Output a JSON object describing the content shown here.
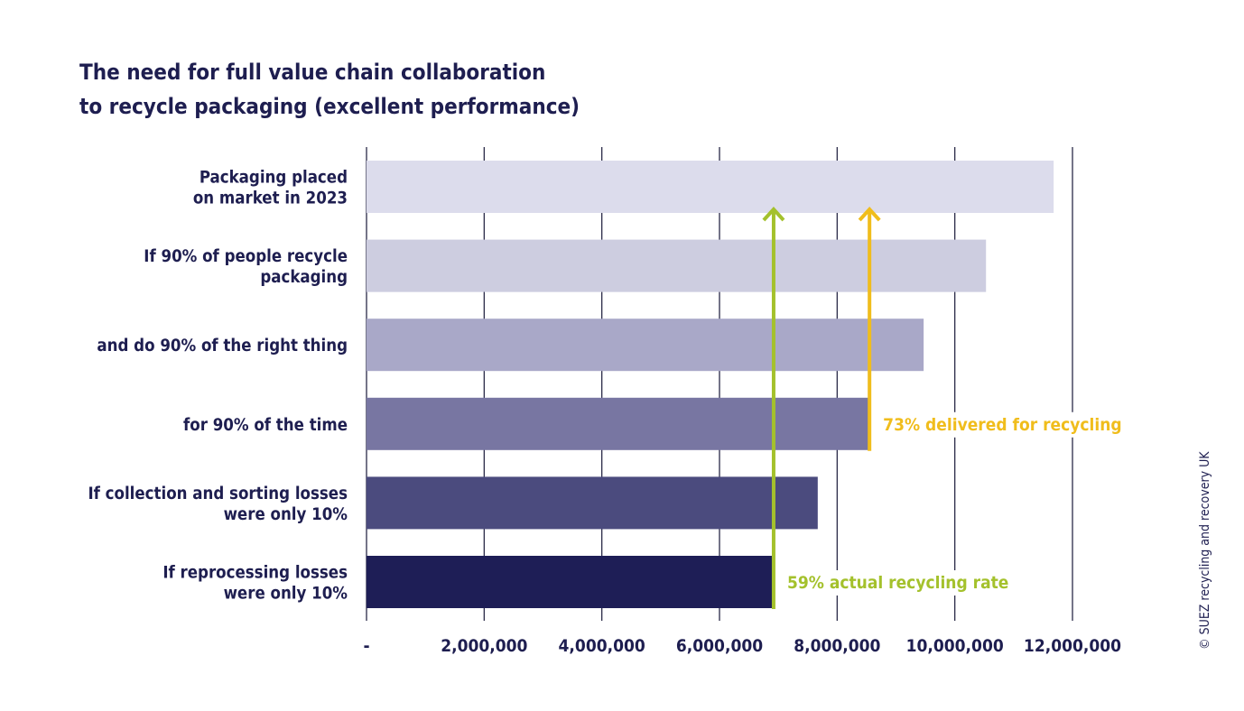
{
  "chart_data": {
    "type": "bar",
    "orientation": "horizontal",
    "title_lines": [
      "The need for full value chain collaboration",
      "to recycle packaging (excellent performance)"
    ],
    "categories": [
      [
        "Packaging placed",
        "on market in 2023"
      ],
      [
        "If 90% of people recycle",
        "packaging"
      ],
      [
        "and do 90% of the right thing"
      ],
      [
        "for 90% of the time"
      ],
      [
        "If collection and sorting losses",
        "were only 10%"
      ],
      [
        "If reprocessing losses",
        "were only 10%"
      ]
    ],
    "values": [
      11680000,
      10530000,
      9470000,
      8530000,
      7670000,
      6900000
    ],
    "bar_colors": [
      "#dcdcec",
      "#cdcde0",
      "#a9a8c8",
      "#7876a2",
      "#4b4b7e",
      "#1e1e56"
    ],
    "xlim": [
      0,
      12000000
    ],
    "xticks": [
      0,
      2000000,
      4000000,
      6000000,
      8000000,
      10000000,
      12000000
    ],
    "xtick_labels": [
      "-",
      "2,000,000",
      "4,000,000",
      "6,000,000",
      "8,000,000",
      "10,000,000",
      "12,000,000"
    ],
    "grid": "vertical",
    "annotations": [
      {
        "text": "73% delivered for recycling",
        "value": 8550000,
        "color": "#f0bd1c",
        "from_category": 3,
        "to_category": 0
      },
      {
        "text": "59% actual recycling rate",
        "value": 6920000,
        "color": "#a4c12c",
        "from_category": 5,
        "to_category": 0
      }
    ],
    "credit": "© SUEZ recycling and recovery UK"
  }
}
